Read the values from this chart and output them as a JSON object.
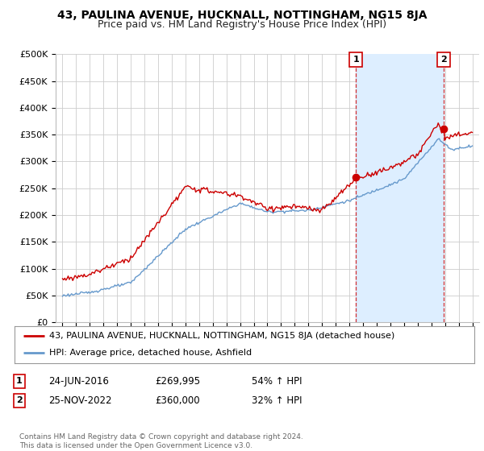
{
  "title": "43, PAULINA AVENUE, HUCKNALL, NOTTINGHAM, NG15 8JA",
  "subtitle": "Price paid vs. HM Land Registry's House Price Index (HPI)",
  "ylim": [
    0,
    500000
  ],
  "yticks": [
    0,
    50000,
    100000,
    150000,
    200000,
    250000,
    300000,
    350000,
    400000,
    450000,
    500000
  ],
  "ytick_labels": [
    "£0",
    "£50K",
    "£100K",
    "£150K",
    "£200K",
    "£250K",
    "£300K",
    "£350K",
    "£400K",
    "£450K",
    "£500K"
  ],
  "xlim_start": 1994.5,
  "xlim_end": 2025.5,
  "sale1_x": 2016.48,
  "sale1_y": 269995,
  "sale2_x": 2022.9,
  "sale2_y": 360000,
  "red_line_color": "#cc0000",
  "blue_line_color": "#6699cc",
  "shade_color": "#ddeeff",
  "vline_color": "#cc0000",
  "grid_color": "#cccccc",
  "background_color": "#ffffff",
  "legend_line1": "43, PAULINA AVENUE, HUCKNALL, NOTTINGHAM, NG15 8JA (detached house)",
  "legend_line2": "HPI: Average price, detached house, Ashfield",
  "annot1_date": "24-JUN-2016",
  "annot1_price": "£269,995",
  "annot1_hpi": "54% ↑ HPI",
  "annot2_date": "25-NOV-2022",
  "annot2_price": "£360,000",
  "annot2_hpi": "32% ↑ HPI",
  "footer": "Contains HM Land Registry data © Crown copyright and database right 2024.\nThis data is licensed under the Open Government Licence v3.0.",
  "title_fontsize": 10,
  "subtitle_fontsize": 9,
  "axis_fontsize": 8,
  "legend_fontsize": 8
}
